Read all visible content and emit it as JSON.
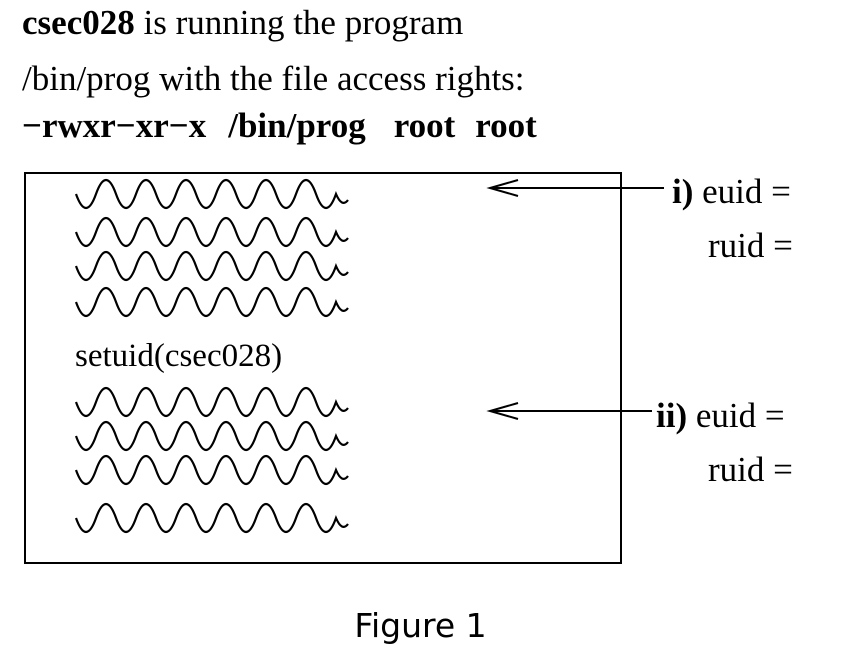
{
  "header": {
    "line1_user": "csec028",
    "line1_rest": " is running the program",
    "line2": "/bin/prog with the file access rights:",
    "perm_string": "−rwxr−xr−x",
    "perm_path": "/bin/prog",
    "perm_owner": "root",
    "perm_group": "root"
  },
  "code_box": {
    "setuid_call": "setuid(csec028)",
    "wavy_lines_before": 4,
    "wavy_lines_after": 4
  },
  "annotations": [
    {
      "marker": "i)",
      "euid_label": "euid =",
      "ruid_label": "ruid ="
    },
    {
      "marker": "ii)",
      "euid_label": "euid =",
      "ruid_label": "ruid ="
    }
  ],
  "caption": "Figure 1"
}
